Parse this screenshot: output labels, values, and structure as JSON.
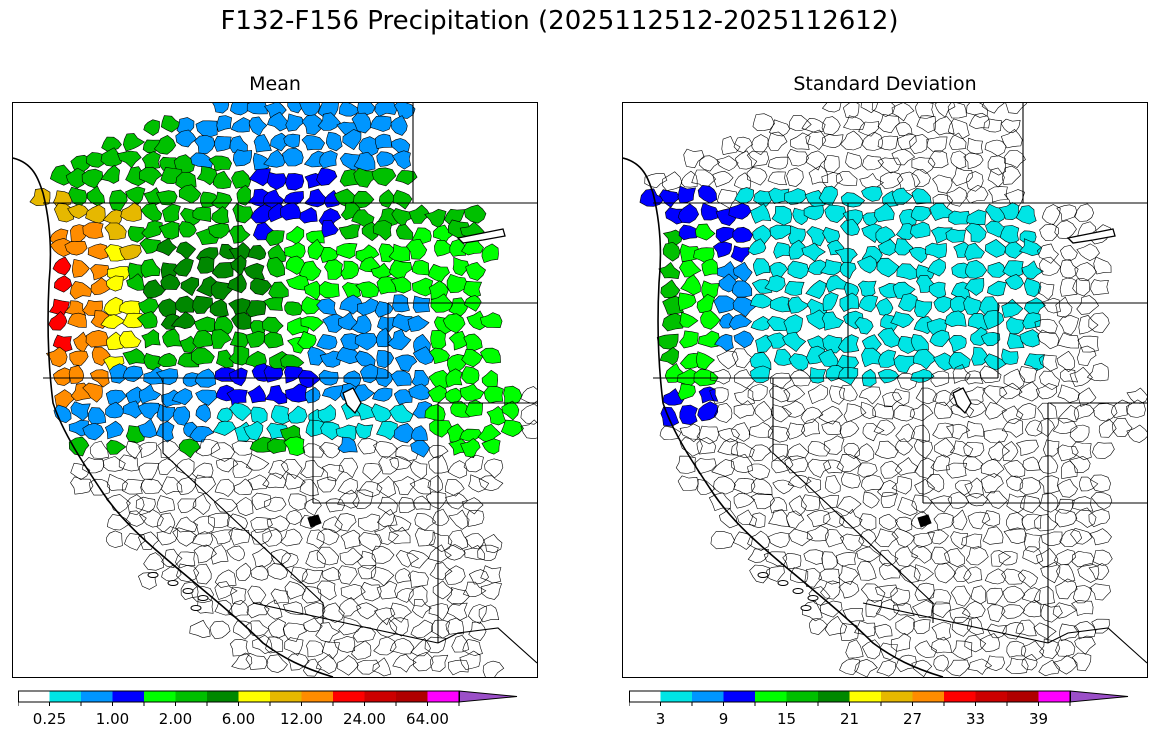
{
  "title": "F132-F156 Precipitation (2025112512-2025112612)",
  "panels": [
    {
      "id": "mean",
      "title": "Mean",
      "colorbar": {
        "colors": [
          "#ffffff",
          "#00e5e5",
          "#0096ff",
          "#0000ff",
          "#00ff00",
          "#00c000",
          "#008800",
          "#ffff00",
          "#e6b800",
          "#ff8c00",
          "#ff0000",
          "#cc0000",
          "#b00000",
          "#ff00ff",
          "#9b4fc8"
        ],
        "tick_labels": [
          "0.25",
          "1.00",
          "2.00",
          "6.00",
          "12.00",
          "24.00",
          "64.00"
        ],
        "extend": "max"
      }
    },
    {
      "id": "stdev",
      "title": "Standard Deviation",
      "colorbar": {
        "colors": [
          "#ffffff",
          "#00e5e5",
          "#0096ff",
          "#0000ff",
          "#00ff00",
          "#00c000",
          "#008800",
          "#ffff00",
          "#e6b800",
          "#ff8c00",
          "#ff0000",
          "#cc0000",
          "#b00000",
          "#ff00ff",
          "#9b4fc8"
        ],
        "tick_labels": [
          "3",
          "9",
          "15",
          "21",
          "27",
          "33",
          "39"
        ],
        "extend": "max"
      }
    }
  ]
}
